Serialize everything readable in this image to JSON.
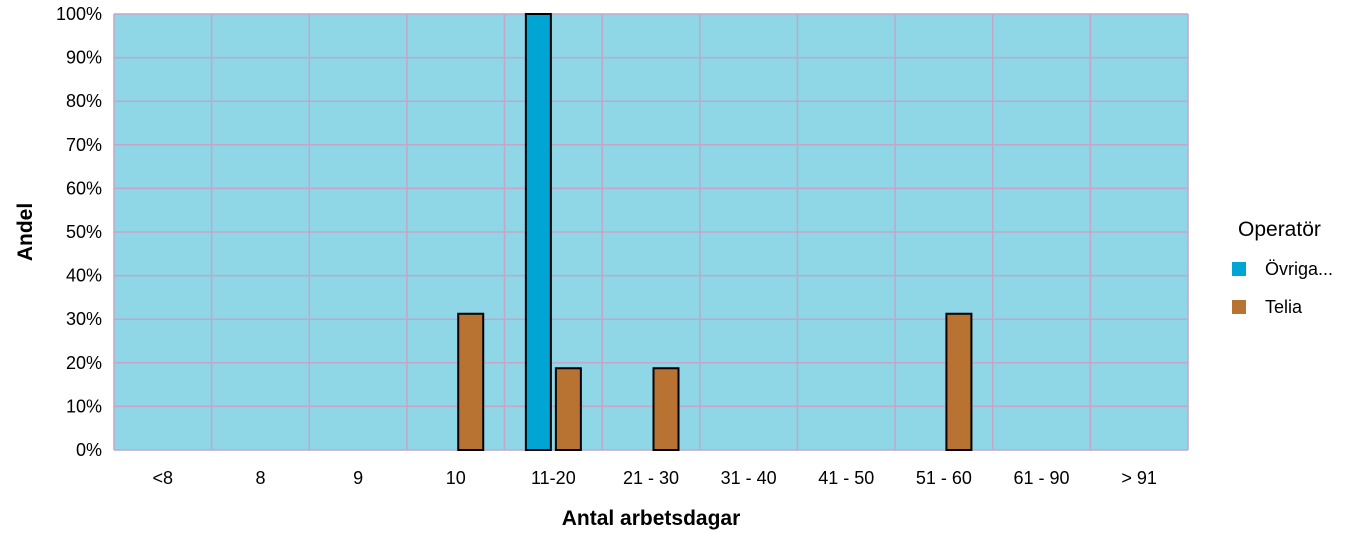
{
  "chart_data": {
    "type": "bar",
    "xlabel": "Antal arbetsdagar",
    "ylabel": "Andel",
    "ylim": [
      0,
      100
    ],
    "y_ticks": [
      "0%",
      "10%",
      "20%",
      "30%",
      "40%",
      "50%",
      "60%",
      "70%",
      "80%",
      "90%",
      "100%"
    ],
    "categories": [
      "<8",
      "8",
      "9",
      "10",
      "11-20",
      "21 - 30",
      "31 - 40",
      "41 - 50",
      "51 - 60",
      "61 - 90",
      "> 91"
    ],
    "series": [
      {
        "name": "Övriga...",
        "color": "#00a5d4",
        "values": [
          null,
          null,
          null,
          null,
          100,
          null,
          null,
          null,
          null,
          null,
          null
        ]
      },
      {
        "name": "Telia",
        "color": "#b87333",
        "values": [
          null,
          null,
          null,
          31.25,
          18.75,
          18.75,
          null,
          null,
          31.25,
          null,
          null
        ]
      }
    ],
    "grid": true,
    "plot_background": "#8fd7e6",
    "grid_color": "#c3a6c8",
    "legend": {
      "title": "Operatör",
      "placement": "right"
    }
  }
}
